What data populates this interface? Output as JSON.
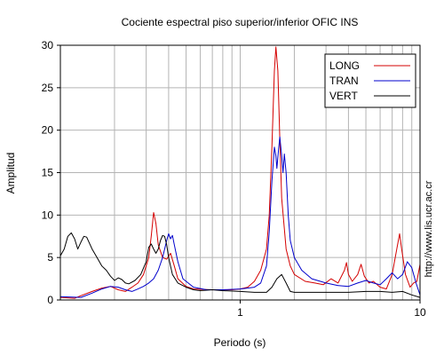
{
  "chart_data": {
    "type": "line",
    "title": "Cociente espectral piso superior/inferior  OFIC INS",
    "xlabel": "Periodo (s)",
    "ylabel": "Amplitud",
    "side_text": "http://www.lis.ucr.ac.cr",
    "x_scale": "log",
    "xlim": [
      0.1,
      10
    ],
    "ylim": [
      0,
      30
    ],
    "x_tick_labels": [
      "1",
      "10"
    ],
    "x_tick_values": [
      1,
      10
    ],
    "y_ticks": [
      0,
      5,
      10,
      15,
      20,
      25,
      30
    ],
    "grid": true,
    "legend_position": "top-right",
    "colors": {
      "LONG": "#d40000",
      "TRAN": "#0000cc",
      "VERT": "#000000"
    },
    "series": [
      {
        "name": "LONG",
        "points": [
          [
            0.1,
            0.3
          ],
          [
            0.12,
            0.2
          ],
          [
            0.13,
            0.5
          ],
          [
            0.15,
            1.0
          ],
          [
            0.17,
            1.4
          ],
          [
            0.19,
            1.6
          ],
          [
            0.21,
            1.2
          ],
          [
            0.23,
            1.0
          ],
          [
            0.25,
            1.5
          ],
          [
            0.27,
            2.0
          ],
          [
            0.29,
            3.0
          ],
          [
            0.31,
            5.0
          ],
          [
            0.32,
            7.5
          ],
          [
            0.33,
            10.3
          ],
          [
            0.34,
            9.0
          ],
          [
            0.35,
            6.5
          ],
          [
            0.37,
            5.0
          ],
          [
            0.39,
            4.8
          ],
          [
            0.41,
            5.5
          ],
          [
            0.43,
            4.0
          ],
          [
            0.45,
            2.5
          ],
          [
            0.5,
            1.6
          ],
          [
            0.55,
            1.3
          ],
          [
            0.7,
            1.2
          ],
          [
            0.9,
            1.2
          ],
          [
            1.0,
            1.3
          ],
          [
            1.1,
            1.5
          ],
          [
            1.2,
            2.2
          ],
          [
            1.3,
            3.5
          ],
          [
            1.4,
            6.0
          ],
          [
            1.45,
            10.0
          ],
          [
            1.5,
            18.0
          ],
          [
            1.55,
            27.0
          ],
          [
            1.58,
            29.8
          ],
          [
            1.62,
            27.0
          ],
          [
            1.66,
            19.0
          ],
          [
            1.7,
            12.0
          ],
          [
            1.8,
            6.0
          ],
          [
            1.9,
            4.0
          ],
          [
            2.0,
            3.0
          ],
          [
            2.3,
            2.2
          ],
          [
            2.6,
            2.0
          ],
          [
            2.9,
            1.8
          ],
          [
            3.2,
            2.5
          ],
          [
            3.5,
            2.0
          ],
          [
            3.8,
            3.5
          ],
          [
            3.9,
            4.4
          ],
          [
            4.0,
            3.0
          ],
          [
            4.2,
            2.2
          ],
          [
            4.5,
            3.0
          ],
          [
            4.7,
            4.2
          ],
          [
            4.9,
            2.8
          ],
          [
            5.2,
            2.0
          ],
          [
            5.5,
            2.2
          ],
          [
            6.0,
            1.5
          ],
          [
            6.5,
            1.3
          ],
          [
            7.0,
            3.0
          ],
          [
            7.5,
            6.5
          ],
          [
            7.7,
            7.8
          ],
          [
            7.9,
            6.0
          ],
          [
            8.3,
            3.0
          ],
          [
            8.8,
            1.5
          ],
          [
            9.2,
            2.0
          ],
          [
            9.6,
            2.2
          ],
          [
            10.0,
            4.2
          ]
        ]
      },
      {
        "name": "TRAN",
        "points": [
          [
            0.1,
            0.4
          ],
          [
            0.13,
            0.3
          ],
          [
            0.15,
            0.8
          ],
          [
            0.17,
            1.3
          ],
          [
            0.19,
            1.6
          ],
          [
            0.21,
            1.5
          ],
          [
            0.23,
            1.2
          ],
          [
            0.25,
            1.0
          ],
          [
            0.27,
            1.3
          ],
          [
            0.29,
            1.6
          ],
          [
            0.31,
            2.0
          ],
          [
            0.33,
            2.5
          ],
          [
            0.35,
            3.5
          ],
          [
            0.37,
            5.0
          ],
          [
            0.39,
            7.0
          ],
          [
            0.4,
            7.8
          ],
          [
            0.41,
            7.2
          ],
          [
            0.42,
            7.6
          ],
          [
            0.43,
            6.5
          ],
          [
            0.45,
            4.5
          ],
          [
            0.48,
            2.5
          ],
          [
            0.55,
            1.5
          ],
          [
            0.65,
            1.2
          ],
          [
            0.8,
            1.2
          ],
          [
            1.0,
            1.3
          ],
          [
            1.1,
            1.4
          ],
          [
            1.2,
            1.5
          ],
          [
            1.3,
            2.0
          ],
          [
            1.4,
            4.0
          ],
          [
            1.45,
            8.0
          ],
          [
            1.5,
            14.0
          ],
          [
            1.55,
            18.0
          ],
          [
            1.58,
            17.0
          ],
          [
            1.6,
            15.5
          ],
          [
            1.63,
            17.5
          ],
          [
            1.66,
            19.2
          ],
          [
            1.7,
            17.0
          ],
          [
            1.73,
            15.0
          ],
          [
            1.76,
            17.2
          ],
          [
            1.8,
            15.0
          ],
          [
            1.85,
            10.0
          ],
          [
            1.9,
            7.0
          ],
          [
            2.0,
            5.0
          ],
          [
            2.2,
            3.5
          ],
          [
            2.5,
            2.5
          ],
          [
            3.0,
            2.0
          ],
          [
            3.5,
            1.7
          ],
          [
            4.0,
            1.6
          ],
          [
            4.5,
            2.0
          ],
          [
            5.0,
            2.3
          ],
          [
            5.5,
            2.0
          ],
          [
            6.0,
            1.8
          ],
          [
            6.5,
            2.5
          ],
          [
            7.0,
            3.2
          ],
          [
            7.5,
            2.5
          ],
          [
            8.0,
            3.0
          ],
          [
            8.5,
            4.5
          ],
          [
            9.0,
            3.8
          ],
          [
            9.5,
            2.0
          ],
          [
            10.0,
            0.6
          ]
        ]
      },
      {
        "name": "VERT",
        "points": [
          [
            0.1,
            5.2
          ],
          [
            0.105,
            6.0
          ],
          [
            0.11,
            7.5
          ],
          [
            0.115,
            7.9
          ],
          [
            0.12,
            7.2
          ],
          [
            0.125,
            6.0
          ],
          [
            0.13,
            6.8
          ],
          [
            0.135,
            7.5
          ],
          [
            0.14,
            7.4
          ],
          [
            0.15,
            6.0
          ],
          [
            0.16,
            5.0
          ],
          [
            0.17,
            4.0
          ],
          [
            0.18,
            3.5
          ],
          [
            0.19,
            2.8
          ],
          [
            0.2,
            2.3
          ],
          [
            0.21,
            2.6
          ],
          [
            0.22,
            2.4
          ],
          [
            0.23,
            2.0
          ],
          [
            0.24,
            1.9
          ],
          [
            0.26,
            2.3
          ],
          [
            0.28,
            3.0
          ],
          [
            0.3,
            4.5
          ],
          [
            0.31,
            6.2
          ],
          [
            0.32,
            6.6
          ],
          [
            0.33,
            6.0
          ],
          [
            0.34,
            5.5
          ],
          [
            0.35,
            6.0
          ],
          [
            0.36,
            7.0
          ],
          [
            0.37,
            7.6
          ],
          [
            0.38,
            7.5
          ],
          [
            0.39,
            6.5
          ],
          [
            0.4,
            5.0
          ],
          [
            0.42,
            3.0
          ],
          [
            0.45,
            2.0
          ],
          [
            0.5,
            1.5
          ],
          [
            0.55,
            1.2
          ],
          [
            0.6,
            1.1
          ],
          [
            0.7,
            1.2
          ],
          [
            0.8,
            1.1
          ],
          [
            1.0,
            1.0
          ],
          [
            1.2,
            0.9
          ],
          [
            1.4,
            0.9
          ],
          [
            1.5,
            1.5
          ],
          [
            1.6,
            2.5
          ],
          [
            1.7,
            3.0
          ],
          [
            1.8,
            2.0
          ],
          [
            1.9,
            1.0
          ],
          [
            2.0,
            0.9
          ],
          [
            2.5,
            0.9
          ],
          [
            3.0,
            0.9
          ],
          [
            4.0,
            0.9
          ],
          [
            5.0,
            1.0
          ],
          [
            6.0,
            1.0
          ],
          [
            7.0,
            0.9
          ],
          [
            8.0,
            1.0
          ],
          [
            9.0,
            0.6
          ],
          [
            10.0,
            0.3
          ]
        ]
      }
    ]
  }
}
